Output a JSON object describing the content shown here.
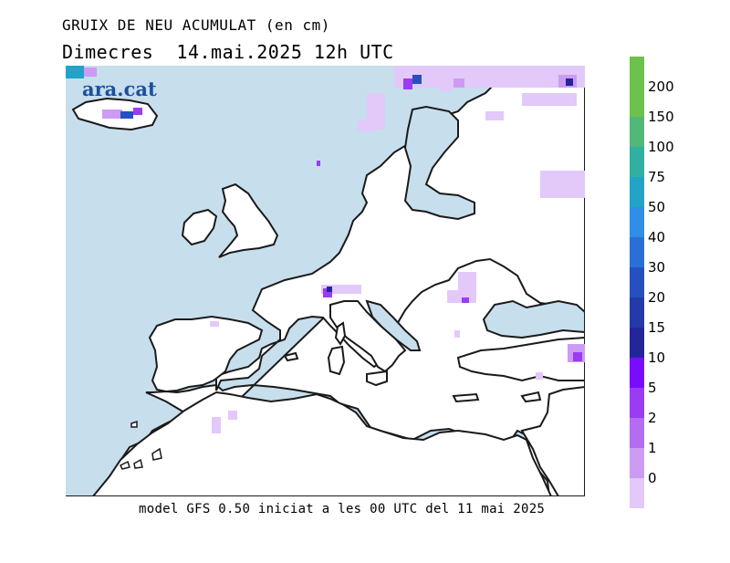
{
  "header": {
    "title": "GRUIX DE NEU ACUMULAT (en cm)",
    "date_line": "Dimecres  14.mai.2025 12h UTC"
  },
  "map": {
    "brand": "ara.cat",
    "sea_color": "#c7deed",
    "land_color": "#ffffff",
    "coast_color": "#1a1a1a"
  },
  "footer": {
    "model_line": "model GFS 0.50 iniciat a les 00 UTC del 11 mai 2025"
  },
  "legend": {
    "unit": "cm",
    "entries": [
      {
        "label": "200",
        "color": "#6cc24a"
      },
      {
        "label": "150",
        "color": "#52b87a"
      },
      {
        "label": "100",
        "color": "#2fb0a0"
      },
      {
        "label": "75",
        "color": "#22a3c8"
      },
      {
        "label": "50",
        "color": "#2e8ee8"
      },
      {
        "label": "40",
        "color": "#2a6fd6"
      },
      {
        "label": "30",
        "color": "#2650c0"
      },
      {
        "label": "20",
        "color": "#233aa8"
      },
      {
        "label": "15",
        "color": "#25259a"
      },
      {
        "label": "10",
        "color": "#7a0bff"
      },
      {
        "label": "5",
        "color": "#9a3cf2"
      },
      {
        "label": "2",
        "color": "#b46cf0"
      },
      {
        "label": "1",
        "color": "#cc9cf4"
      },
      {
        "label": "0",
        "color": "#e3c8fa"
      }
    ],
    "top_swatch_color": "#6cc24a"
  }
}
